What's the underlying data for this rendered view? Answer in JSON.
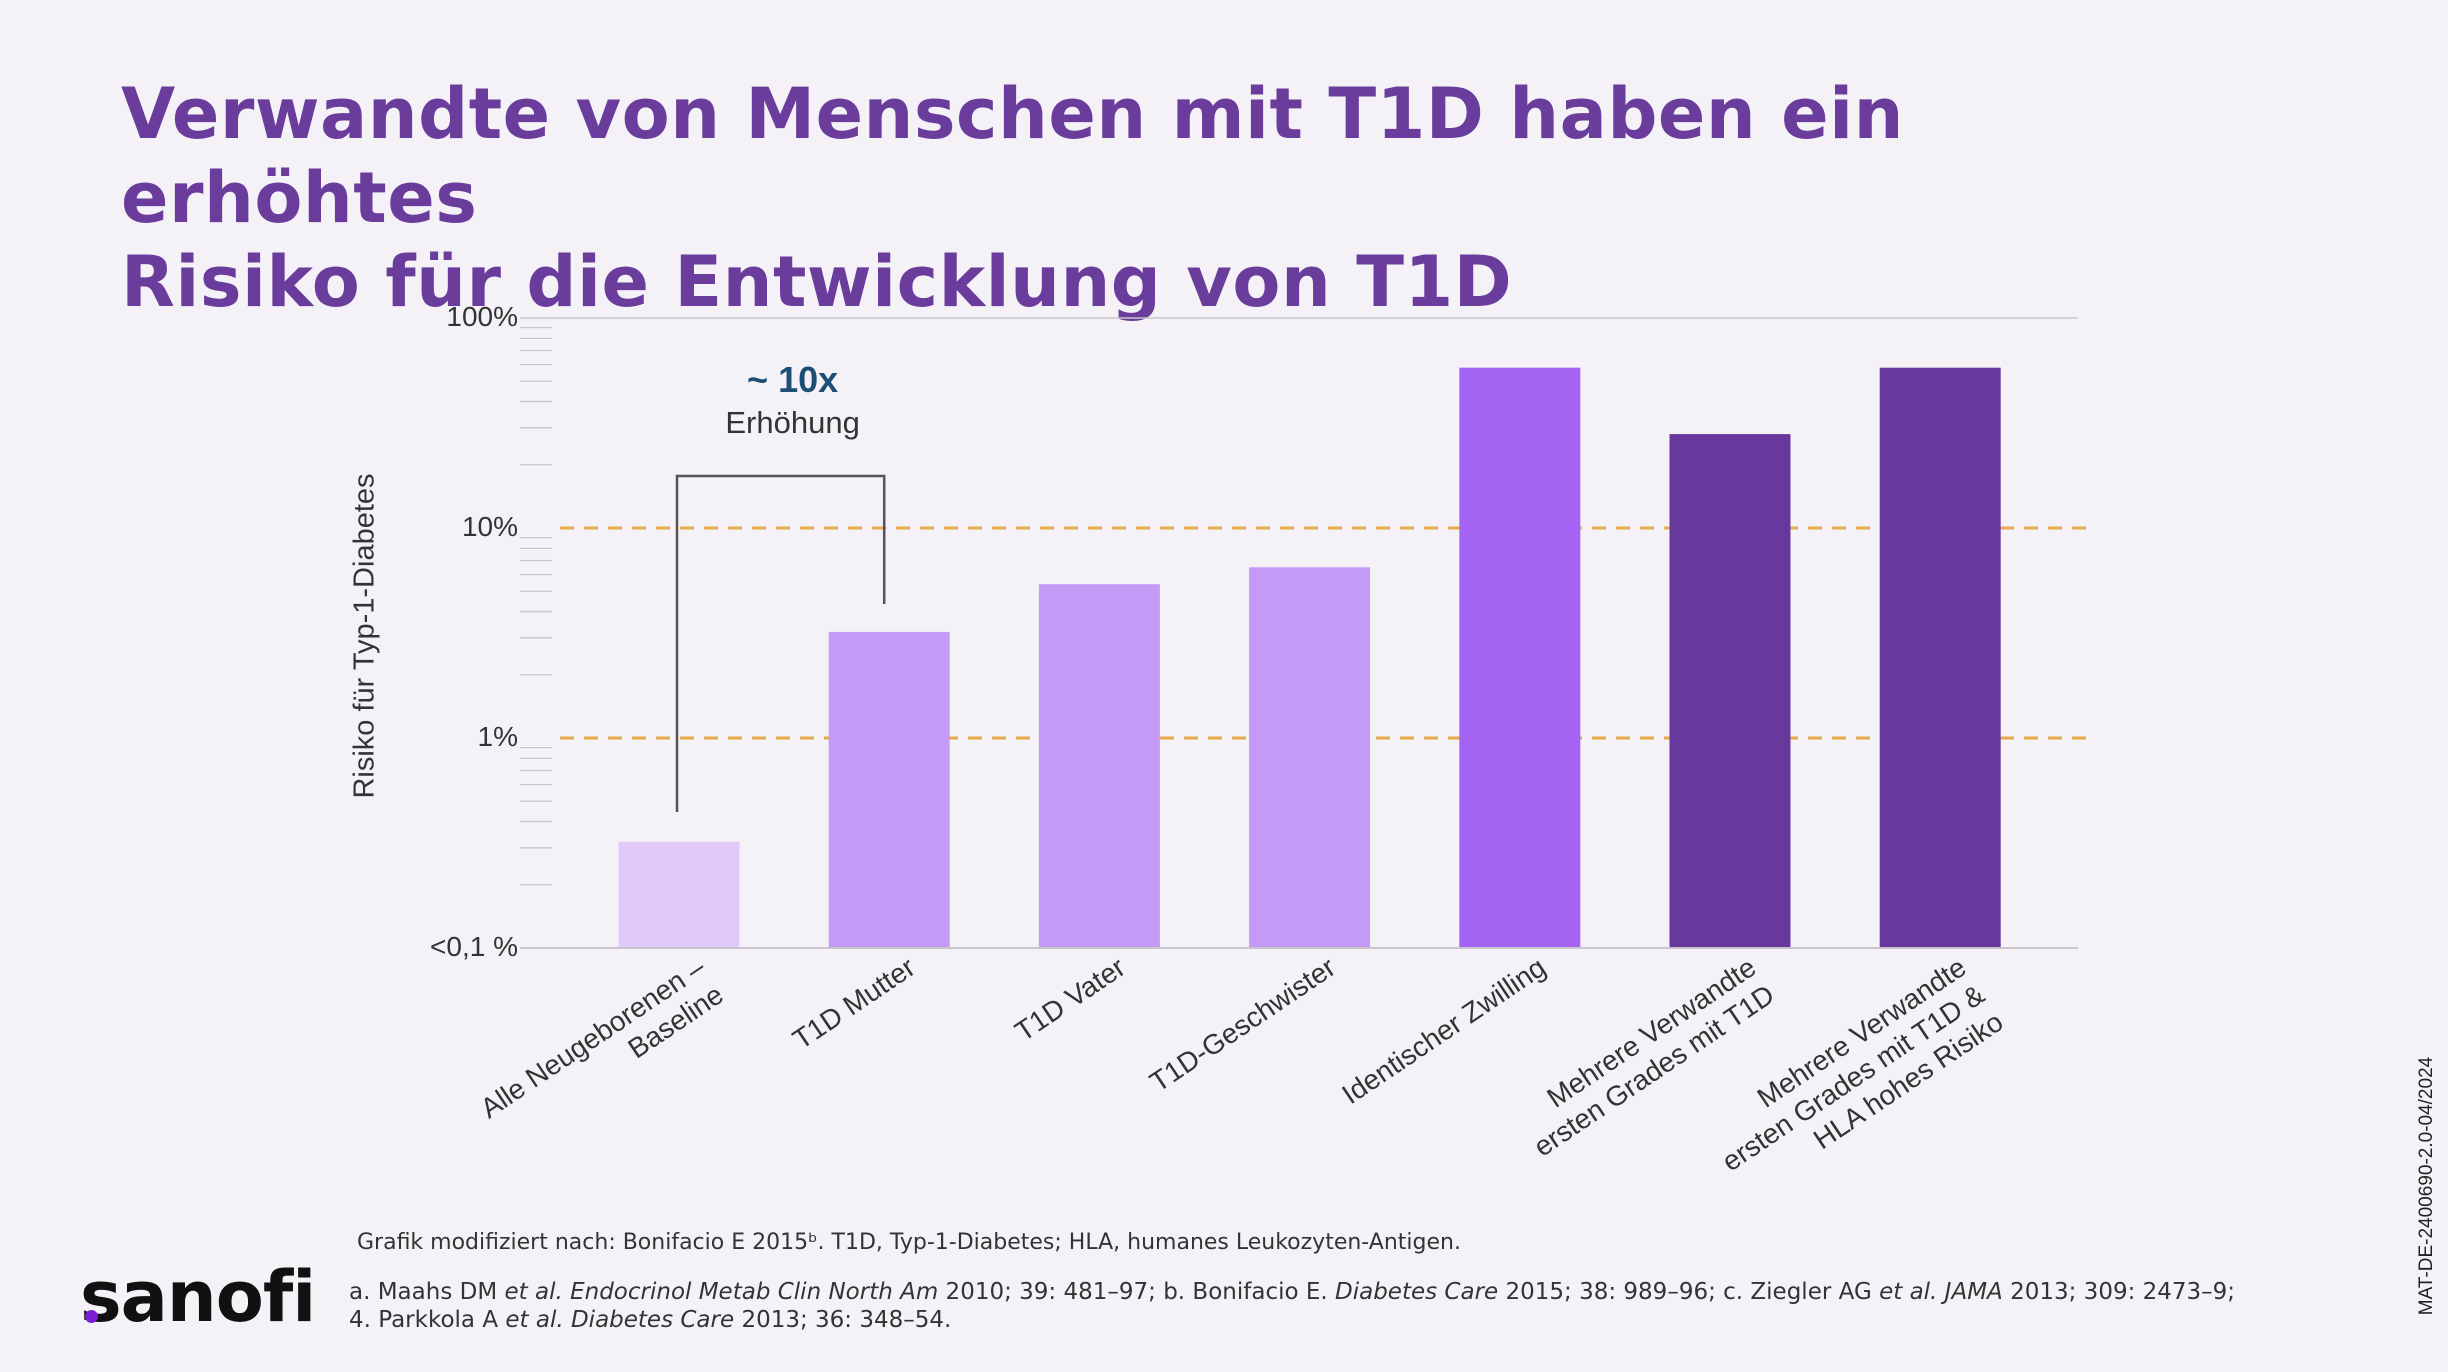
{
  "page": {
    "title_line1": "Verwandte von Menschen mit T1D haben ein erhöhtes",
    "title_line2": "Risiko für die Entwicklung von T1D",
    "footnote": "Grafik modifiziert nach: Bonifacio E 2015ᵇ. T1D, Typ-1-Diabetes; HLA, humanes Leukozyten-Antigen.",
    "references": {
      "a1": "a. Maahs DM ",
      "a_etal": "et al.",
      "a_journal": " Endocrinol Metab Clin North Am",
      "a2": " 2010; 39: 481–97; b. Bonifacio E. ",
      "b_journal": "Diabetes Care",
      "b2": " 2015; 38: 989–96; c. Ziegler AG ",
      "c_etal": "et al.",
      "c_journal": " JAMA",
      "c2": " 2013; 309: 2473–9; 4. Parkkola A ",
      "d_etal": "et al.",
      "d_journal": " Diabetes Care",
      "d2": " 2013; 36: 348–54."
    },
    "logo_text": "sanofi",
    "doc_id": "MAT-DE-2400690-2.0-04/2024"
  },
  "chart_data": {
    "type": "bar",
    "ylabel": "Risiko für Typ-1-Diabetes",
    "yscale": "log",
    "ylim": [
      0.1,
      100
    ],
    "ytick_labels": [
      "<0,1 %",
      "1%",
      "10%",
      "100%"
    ],
    "ytick_values": [
      0.1,
      1,
      10,
      100
    ],
    "reference_lines": [
      1,
      10
    ],
    "categories": [
      [
        "Alle Neugeborenen –",
        "Baseline"
      ],
      [
        "T1D Mutter"
      ],
      [
        "T1D Vater"
      ],
      [
        "T1D-Geschwister"
      ],
      [
        "Identischer Zwilling"
      ],
      [
        "Mehrere Verwandte",
        "ersten Grades mit T1D"
      ],
      [
        "Mehrere Verwandte",
        "ersten Grades mit T1D &",
        "HLA hohes Risiko"
      ]
    ],
    "values": [
      0.32,
      3.2,
      5.4,
      6.5,
      58,
      28,
      58
    ],
    "colors": [
      "#e1c9fa",
      "#c49af7",
      "#c49af7",
      "#c49af7",
      "#a463f2",
      "#68389c",
      "#68389c"
    ],
    "annotation": {
      "value": "~ 10x",
      "label": "Erhöhung",
      "from_index": 0,
      "to_index": 1
    },
    "reference_line_color": "#e8a94c"
  }
}
